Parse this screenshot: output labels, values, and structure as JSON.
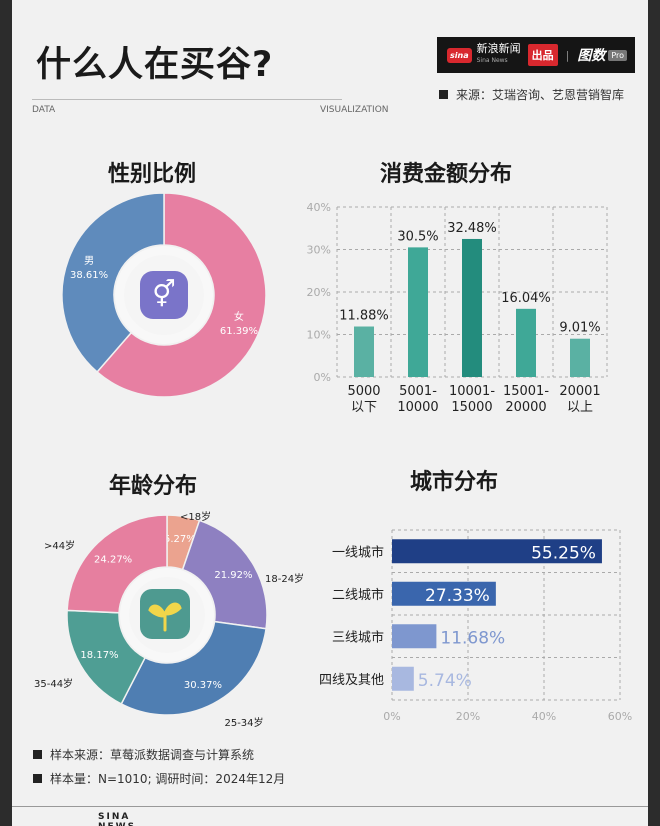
{
  "title": "什么人在买谷?",
  "header": {
    "label_left": "DATA",
    "label_right": "VISUALIZATION"
  },
  "brand": {
    "sina": "sina",
    "name": "新浪新闻",
    "sub": "Sina News",
    "chupin": "出品",
    "sep": "|",
    "tushu": "图数",
    "pro": "Pro"
  },
  "source": "来源：艾瑞咨询、艺恩营销智库",
  "sections": {
    "gender": "性别比例",
    "spend": "消费金额分布",
    "age": "年龄分布",
    "city": "城市分布"
  },
  "notes": [
    "样本来源：草莓派数据调查与计算系统",
    "样本量：N=1010;   调研时间：2024年12月"
  ],
  "footer": "SINA NEWS",
  "colors": {
    "female": "#e77fa2",
    "male": "#5f8bbc",
    "teal": "#3fa897",
    "city_top": "#1f3f86",
    "city_2": "#3a66ad",
    "city_3": "#7e97cf",
    "city_4": "#a8b8e0"
  },
  "chart_data": [
    {
      "type": "pie",
      "title": "性别比例",
      "icon": "gender-icon",
      "slices": [
        {
          "label": "女",
          "value": 61.39,
          "text": "61.39%",
          "color": "#e77fa2"
        },
        {
          "label": "男",
          "value": 38.61,
          "text": "38.61%",
          "color": "#5f8bbc"
        }
      ]
    },
    {
      "type": "bar",
      "title": "消费金额分布",
      "categories": [
        [
          "5000",
          "以下"
        ],
        [
          "5001-",
          "10000"
        ],
        [
          "10001-",
          "15000"
        ],
        [
          "15001-",
          "20000"
        ],
        [
          "20001",
          "以上"
        ]
      ],
      "values": [
        11.88,
        30.5,
        32.48,
        16.04,
        9.01
      ],
      "value_labels": [
        "11.88%",
        "30.5%",
        "32.48%",
        "16.04%",
        "9.01%"
      ],
      "bar_colors": [
        "#5ab1a3",
        "#3fa897",
        "#238c7d",
        "#3fa897",
        "#5ab1a3"
      ],
      "ylim": [
        0,
        40
      ],
      "yticks": [
        "0%",
        "10%",
        "20%",
        "30%",
        "40%"
      ],
      "grid": true
    },
    {
      "type": "pie",
      "title": "年龄分布",
      "icon": "sprout-icon",
      "slices": [
        {
          "label": "<18岁",
          "value": 5.27,
          "text": "5.27%",
          "color": "#eba38f"
        },
        {
          "label": "18-24岁",
          "value": 21.92,
          "text": "21.92%",
          "color": "#8e80c1"
        },
        {
          "label": "25-34岁",
          "value": 30.37,
          "text": "30.37%",
          "color": "#4f7eb2"
        },
        {
          "label": "35-44岁",
          "value": 18.17,
          "text": "18.17%",
          "color": "#4f9e94"
        },
        {
          "label": ">44岁",
          "value": 24.27,
          "text": "24.27%",
          "color": "#e67f9f"
        }
      ]
    },
    {
      "type": "bar",
      "orientation": "horizontal",
      "title": "城市分布",
      "categories": [
        "一线城市",
        "二线城市",
        "三线城市",
        "四线及其他"
      ],
      "values": [
        55.25,
        27.33,
        11.68,
        5.74
      ],
      "value_labels": [
        "55.25%",
        "27.33%",
        "11.68%",
        "5.74%"
      ],
      "bar_colors": [
        "#1f3f86",
        "#3a66ad",
        "#7e97cf",
        "#a8b8e0"
      ],
      "xlim": [
        0,
        60
      ],
      "xticks": [
        "0%",
        "20%",
        "40%",
        "60%"
      ],
      "grid": true
    }
  ]
}
